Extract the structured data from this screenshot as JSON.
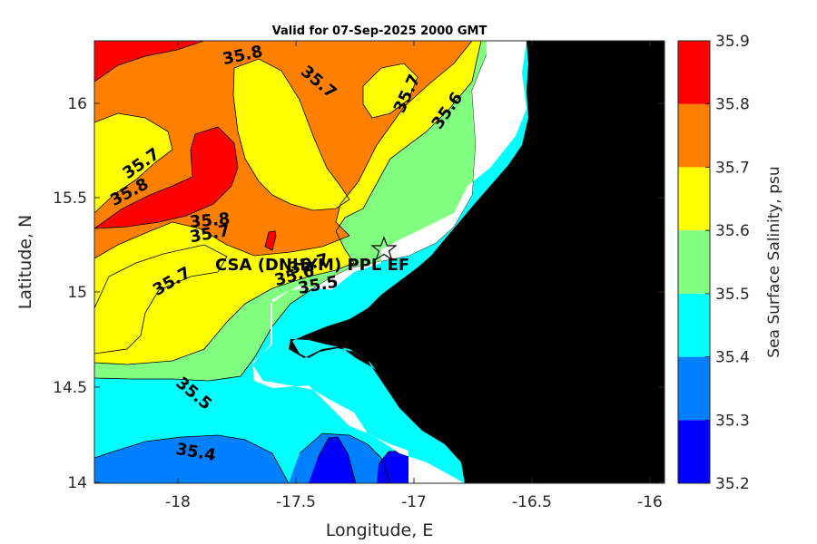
{
  "chart_data": {
    "type": "heatmap",
    "subtype": "filled-contour-map",
    "title": "Valid for 07-Sep-2025 2000 GMT",
    "xlabel": "Longitude, E",
    "ylabel": "Latitude, N",
    "xlim": [
      -18.35,
      -15.93
    ],
    "ylim": [
      14.0,
      16.33
    ],
    "xticks": [
      -18,
      -17.5,
      -17,
      -16.5,
      -16
    ],
    "xtick_labels": [
      "-18",
      "-17.5",
      "-17",
      "-16.5",
      "-16"
    ],
    "yticks": [
      14,
      14.5,
      15,
      15.5,
      16
    ],
    "ytick_labels": [
      "14",
      "14.5",
      "15",
      "15.5",
      "16"
    ],
    "colorbar": {
      "label": "Sea Surface Salinity, psu",
      "levels": [
        35.2,
        35.3,
        35.4,
        35.5,
        35.6,
        35.7,
        35.8,
        35.9
      ],
      "tick_labels": [
        "35.2",
        "35.3",
        "35.4",
        "35.5",
        "35.6",
        "35.7",
        "35.8",
        "35.9"
      ],
      "colors": [
        "#0000ff",
        "#0080ff",
        "#00ffff",
        "#80ff80",
        "#ffff00",
        "#ff8000",
        "#ff0000"
      ]
    },
    "contour_labels": [
      {
        "text": "35.8",
        "lon": -17.72,
        "lat": 16.25,
        "rot": -12
      },
      {
        "text": "35.7",
        "lon": -17.4,
        "lat": 16.11,
        "rot": 40
      },
      {
        "text": "35.7",
        "lon": -17.02,
        "lat": 16.05,
        "rot": -65
      },
      {
        "text": "35.6",
        "lon": -16.85,
        "lat": 15.96,
        "rot": -55
      },
      {
        "text": "35.7",
        "lon": -18.15,
        "lat": 15.68,
        "rot": -35
      },
      {
        "text": "35.8",
        "lon": -18.2,
        "lat": 15.53,
        "rot": -28
      },
      {
        "text": "35.8",
        "lon": -17.86,
        "lat": 15.38,
        "rot": -5
      },
      {
        "text": "35.7",
        "lon": -17.86,
        "lat": 15.31,
        "rot": -10
      },
      {
        "text": "35.7",
        "lon": -17.44,
        "lat": 15.15,
        "rot": -15
      },
      {
        "text": "35.6",
        "lon": -17.5,
        "lat": 15.09,
        "rot": -15
      },
      {
        "text": "35.5",
        "lon": -17.4,
        "lat": 15.04,
        "rot": -10
      },
      {
        "text": "35.7",
        "lon": -18.02,
        "lat": 15.06,
        "rot": -30
      },
      {
        "text": "35.5",
        "lon": -17.93,
        "lat": 14.47,
        "rot": 40
      },
      {
        "text": "35.4",
        "lon": -17.92,
        "lat": 14.16,
        "rot": 10
      }
    ],
    "station": {
      "label": "CSA (DNHYM) PPL EF",
      "lon": -17.1,
      "lat": 15.22
    }
  },
  "colors": {
    "land": "#000000",
    "nodata": "#ffffff",
    "axes": "#262626"
  }
}
